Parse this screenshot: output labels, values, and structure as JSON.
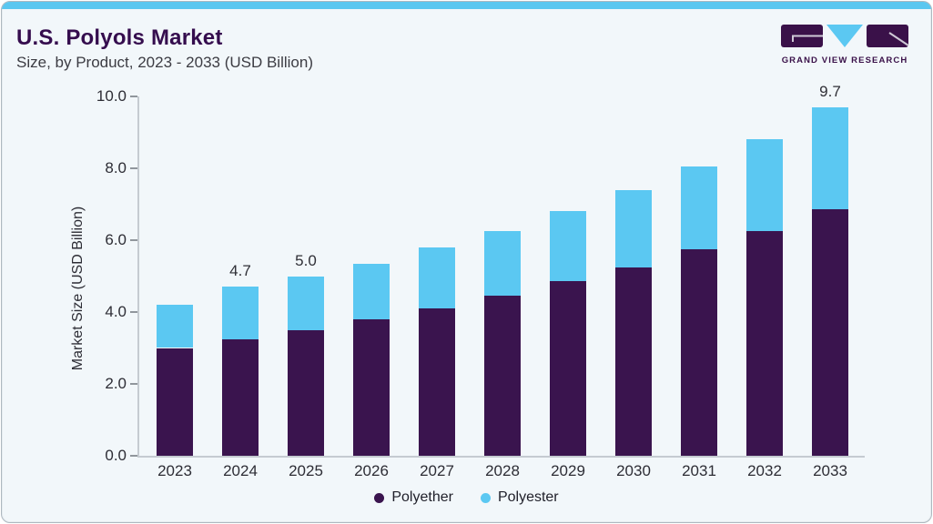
{
  "header": {
    "title": "U.S. Polyols Market",
    "subtitle": "Size, by Product, 2023 - 2033 (USD Billion)"
  },
  "brand": {
    "name": "GRAND VIEW RESEARCH",
    "logo_icon": "gvr-logo-mark"
  },
  "colors": {
    "accent_strip": "#5bc7f0",
    "card_background": "#f2f7fa",
    "card_border": "#aeb8c0",
    "title_text": "#350d4e",
    "subtitle_text": "#3c3c43",
    "axis_line": "#c5cbd1",
    "tick_mark": "#90969c",
    "axis_text": "#2d2d35",
    "polyether": "#3a144e",
    "polyester": "#5bc8f2"
  },
  "chart_data": {
    "type": "bar",
    "stacked": true,
    "title": "U.S. Polyols Market Size, by Product, 2023 - 2033 (USD Billion)",
    "ylabel": "Market Size (USD Billion)",
    "xlabel": "",
    "ylim": [
      0,
      10
    ],
    "ytick_labels": [
      "0.0",
      "2.0",
      "4.0",
      "6.0",
      "8.0",
      "10.0"
    ],
    "grid": false,
    "legend_position": "bottom",
    "categories": [
      "2023",
      "2024",
      "2025",
      "2026",
      "2027",
      "2028",
      "2029",
      "2030",
      "2031",
      "2032",
      "2033"
    ],
    "series": [
      {
        "name": "Polyether",
        "color": "#3a144e",
        "values": [
          3.0,
          3.25,
          3.5,
          3.8,
          4.1,
          4.45,
          4.85,
          5.25,
          5.75,
          6.25,
          6.85
        ]
      },
      {
        "name": "Polyester",
        "color": "#5bc8f2",
        "values": [
          1.2,
          1.45,
          1.5,
          1.55,
          1.7,
          1.8,
          1.95,
          2.15,
          2.3,
          2.55,
          2.85
        ]
      }
    ],
    "totals": [
      4.2,
      4.7,
      5.0,
      5.35,
      5.8,
      6.25,
      6.8,
      7.4,
      8.05,
      8.8,
      9.7
    ],
    "bar_value_labels": {
      "2024": "4.7",
      "2025": "5.0",
      "2033": "9.7"
    }
  }
}
